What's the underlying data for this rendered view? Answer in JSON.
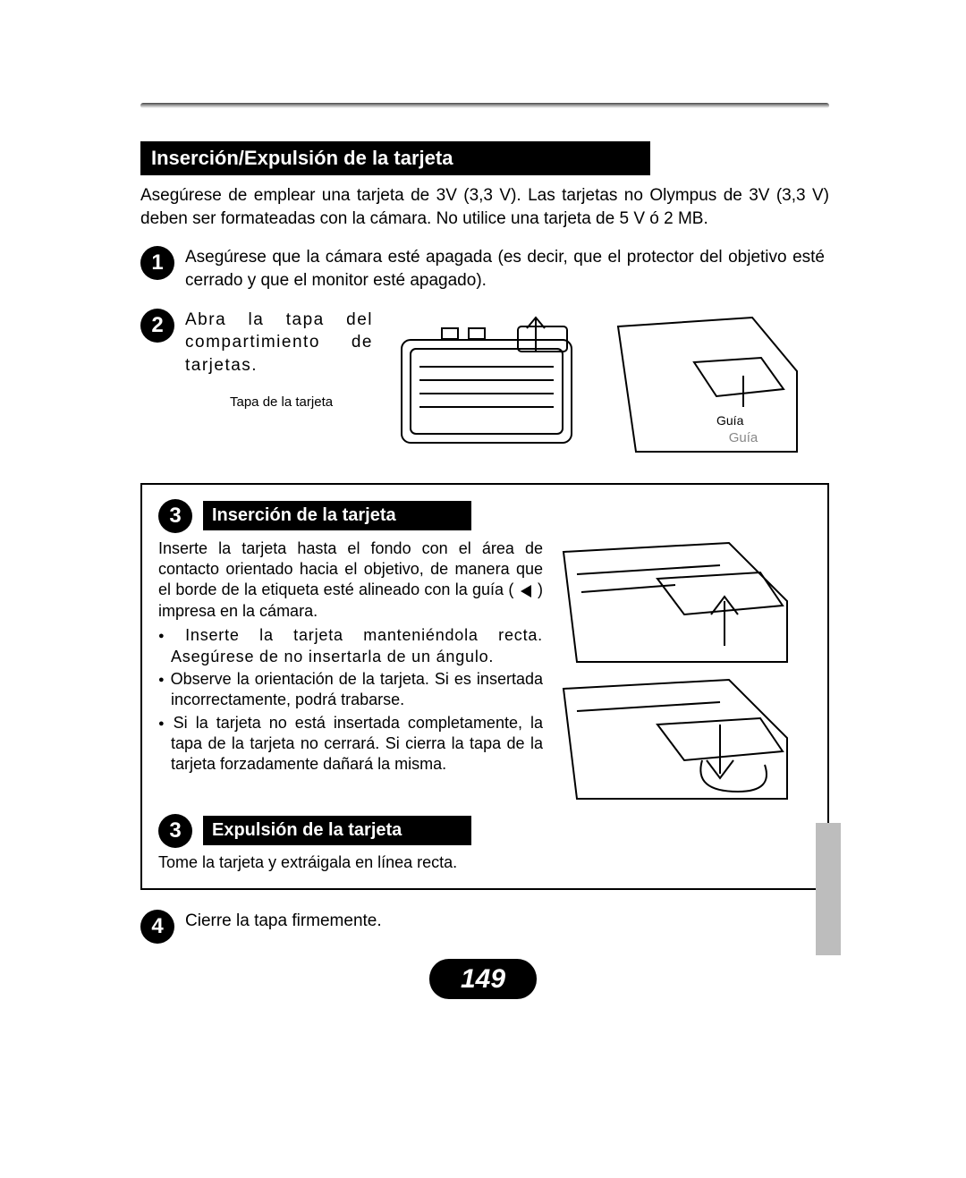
{
  "colors": {
    "bg": "#ffffff",
    "ink": "#000000",
    "tab": "#bdbdbd"
  },
  "page_number": "149",
  "section_title": "Inserción/Expulsión de la tarjeta",
  "intro": "Asegúrese de emplear una tarjeta de 3V (3,3 V). Las tarjetas no Olympus de 3V (3,3 V) deben ser formateadas con la cámara. No utilice una tarjeta de 5 V ó 2 MB.",
  "steps": {
    "s1": {
      "num": "1",
      "text": "Asegúrese que la cámara esté apagada (es decir, que el protector del objetivo esté cerrado y que el monitor esté apagado)."
    },
    "s2": {
      "num": "2",
      "text": "Abra la tapa del compartimiento de tarjetas."
    },
    "s4": {
      "num": "4",
      "text": "Cierre la tapa firmemente."
    }
  },
  "captions": {
    "card_cover": "Tapa de la tarjeta",
    "guide": "Guía"
  },
  "box": {
    "insert": {
      "num": "3",
      "title": "Inserción de la tarjeta",
      "intro": "Inserte la tarjeta hasta el fondo con el área de contacto orientado hacia el objetivo, de manera que el borde de la etiqueta esté alineado con la guía (    ) impresa en la cámara.",
      "b1": "Inserte la tarjeta manteniéndola recta. Asegúrese de no insertarla de un ángulo.",
      "b2": "Observe la orientación de la tarjeta. Si es insertada incorrectamente, podrá trabarse.",
      "b3": "Si la tarjeta no está insertada completamente, la tapa de la tarjeta no cerrará. Si cierra la tapa de la tarjeta forzadamente dañará la misma."
    },
    "eject": {
      "num": "3",
      "title": "Expulsión de la tarjeta",
      "text": "Tome la tarjeta y extráigala en línea recta."
    }
  }
}
